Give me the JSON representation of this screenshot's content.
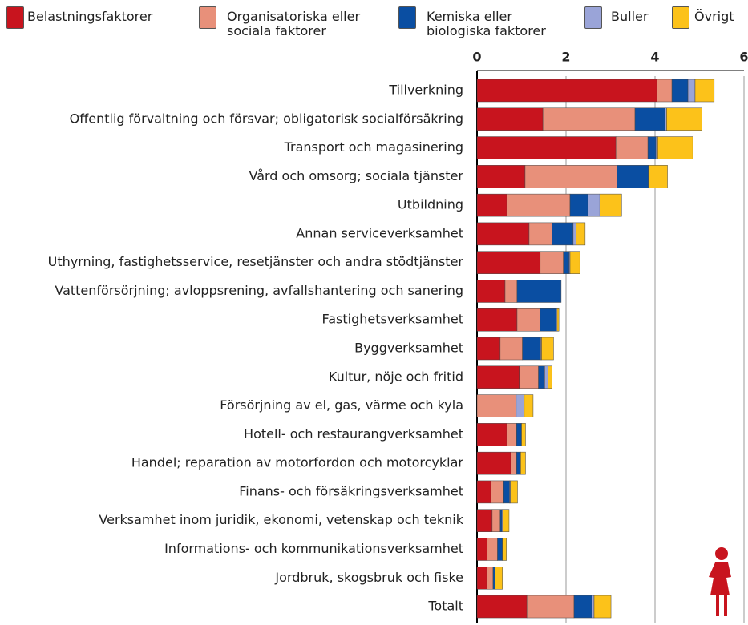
{
  "chart_data": {
    "type": "stacked-barh",
    "categories": [
      "Tillverkning",
      "Offentlig förvaltning och försvar;  obligatorisk socialförsäkring",
      "Transport och magasinering",
      "Vård och omsorg; sociala tjänster",
      "Utbildning",
      "Annan serviceverksamhet",
      "Uthyrning, fastighetsservice, resetjänster och andra stödtjänster",
      "Vattenförsörjning; avloppsrening, avfallshantering och sanering",
      "Fastighetsverksamhet",
      "Byggverksamhet",
      "Kultur, nöje och fritid",
      "Försörjning av el, gas, värme och kyla",
      "Hotell- och restaurangverksamhet",
      "Handel; reparation av motorfordon och motorcyklar",
      "Finans- och försäkringsverksamhet",
      "Verksamhet inom juridik, ekonomi, vetenskap och teknik",
      "Informations- och kommunikationsverksamhet",
      "Jordbruk, skogsbruk och fiske",
      "Totalt"
    ],
    "series": [
      {
        "name": "Belastningsfaktorer",
        "color": "#c8141e",
        "values": [
          4.04,
          1.48,
          3.12,
          1.08,
          0.67,
          1.17,
          1.42,
          0.63,
          0.9,
          0.52,
          0.95,
          0,
          0.67,
          0.76,
          0.31,
          0.34,
          0.23,
          0.22,
          1.12
        ]
      },
      {
        "name": "Organisatoriska eller\nsociala faktorer",
        "color": "#e8907a",
        "values": [
          0.34,
          2.07,
          0.72,
          2.07,
          1.42,
          0.52,
          0.52,
          0.27,
          0.52,
          0.5,
          0.43,
          0.88,
          0.22,
          0.13,
          0.29,
          0.18,
          0.23,
          0.14,
          1.06
        ]
      },
      {
        "name": "Kemiska eller\nbiologiska faktorer",
        "color": "#0a4ea2",
        "values": [
          0.36,
          0.67,
          0.18,
          0.7,
          0.4,
          0.47,
          0.13,
          0.99,
          0.36,
          0.41,
          0.14,
          0,
          0.11,
          0.07,
          0.13,
          0.04,
          0.11,
          0.05,
          0.4
        ]
      },
      {
        "name": "Buller",
        "color": "#9aa4d8",
        "values": [
          0.16,
          0.04,
          0.04,
          0.02,
          0.27,
          0.07,
          0.02,
          0,
          0.02,
          0.02,
          0.07,
          0.18,
          0,
          0.02,
          0.02,
          0.02,
          0,
          0,
          0.05
        ]
      },
      {
        "name": "Övrigt",
        "color": "#fcc21a",
        "values": [
          0.43,
          0.79,
          0.79,
          0.41,
          0.49,
          0.2,
          0.22,
          0,
          0.04,
          0.27,
          0.09,
          0.2,
          0.09,
          0.11,
          0.16,
          0.14,
          0.09,
          0.16,
          0.38
        ]
      }
    ],
    "xlim": [
      0,
      6
    ],
    "xticks": [
      0,
      2,
      4,
      6
    ],
    "grid": true
  }
}
